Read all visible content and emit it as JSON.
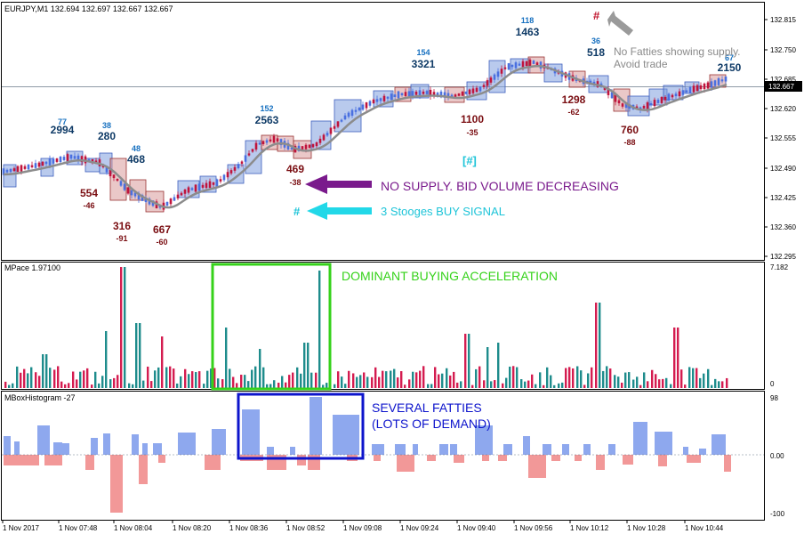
{
  "chart_data": {
    "type": "candlestick",
    "main": {
      "header": "EURJPY,M1  132.694 132.697 132.667 132.667",
      "current_price": "132.667",
      "price_ticks": [
        "132.815",
        "132.750",
        "132.685",
        "132.620",
        "132.555",
        "132.490",
        "132.425",
        "132.360",
        "132.295"
      ],
      "volume_labels": [
        {
          "top": "77",
          "bottom": "2994",
          "kind": "up"
        },
        {
          "top": "38",
          "bottom": "280",
          "kind": "up"
        },
        {
          "top": "48",
          "bottom": "468",
          "kind": "up"
        },
        {
          "top": "152",
          "bottom": "2563",
          "kind": "up"
        },
        {
          "top": "154",
          "bottom": "3321",
          "kind": "up"
        },
        {
          "top": "118",
          "bottom": "1463",
          "kind": "up"
        },
        {
          "top": "36",
          "bottom": "518",
          "kind": "up"
        },
        {
          "top": "67",
          "bottom": "2150",
          "kind": "up"
        },
        {
          "top": "554",
          "bottom": "-46",
          "kind": "down"
        },
        {
          "top": "316",
          "bottom": "-91",
          "kind": "down"
        },
        {
          "top": "667",
          "bottom": "-60",
          "kind": "down"
        },
        {
          "top": "469",
          "bottom": "-38",
          "kind": "down"
        },
        {
          "top": "1100",
          "bottom": "-35",
          "kind": "down"
        },
        {
          "top": "1298",
          "bottom": "-62",
          "kind": "down"
        },
        {
          "top": "760",
          "bottom": "-88",
          "kind": "down"
        }
      ],
      "annotations": {
        "no_supply": "NO SUPPLY. BID VOLUME DECREASING",
        "stooges": "3 Stooges BUY SIGNAL",
        "stooges_hash": "#",
        "bracket_hash": "[#]",
        "no_fatties_line1": "No Fatties showing supply.",
        "no_fatties_line2": "Avoid trade",
        "no_fatties_hash": "#"
      }
    },
    "mpace": {
      "label": "MPace 1.97100",
      "ticks": [
        "7.182",
        "0"
      ],
      "annotation": "DOMINANT BUYING ACCELERATION"
    },
    "mbox": {
      "label": "MBoxHistogram -27",
      "ticks": [
        "98",
        "0.00",
        "-100"
      ],
      "annotation_line1": "SEVERAL FATTIES",
      "annotation_line2": "(LOTS OF DEMAND)"
    },
    "time_labels": [
      "1 Nov 2017",
      "1 Nov 07:48",
      "1 Nov 08:04",
      "1 Nov 08:20",
      "1 Nov 08:36",
      "1 Nov 08:52",
      "1 Nov 09:08",
      "1 Nov 09:24",
      "1 Nov 09:40",
      "1 Nov 09:56",
      "1 Nov 10:12",
      "1 Nov 10:28",
      "1 Nov 10:44"
    ],
    "colors": {
      "up_box": "#7f9fdf",
      "down_box": "#d99a9a",
      "bull_candle": "#4a70e0",
      "bear_candle": "#c0143c",
      "ma": "#8c8c8c",
      "teal_bar": "#1e8c8c",
      "crimson_bar": "#d41c50",
      "hist_pos": "#8ea8ee",
      "hist_neg": "#f29898",
      "green_box": "#35d21a",
      "blue_box": "#0d14cc",
      "purple": "#7a1a8c",
      "cyan": "#22d8e8",
      "up_num": "#1670c0",
      "down_num": "#7a0e12"
    }
  }
}
